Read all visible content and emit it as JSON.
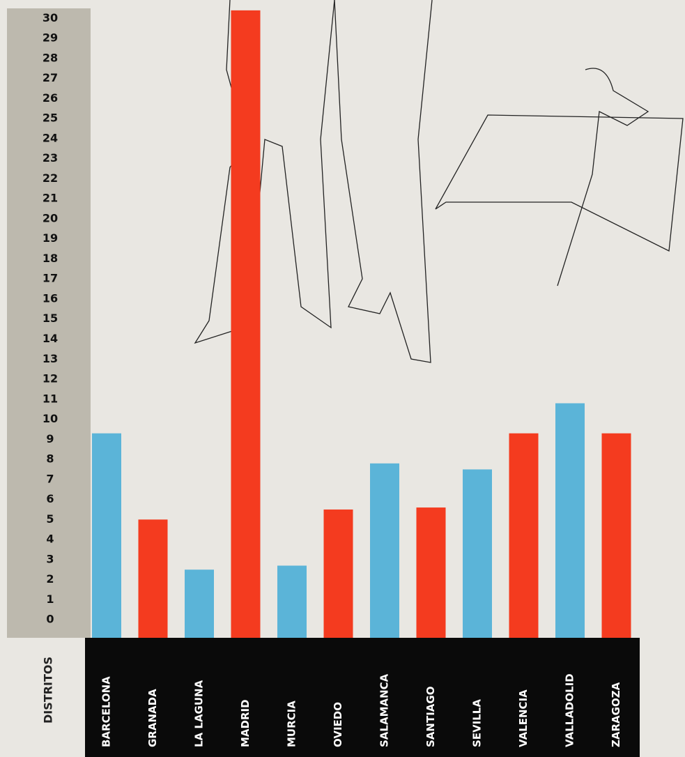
{
  "chart_data": {
    "type": "bar",
    "axis_label": "DISTRITOS",
    "categories": [
      "BARCELONA",
      "GRANADA",
      "LA LAGUNA",
      "MADRID",
      "MURCIA",
      "OVIEDO",
      "SALAMANCA",
      "SANTIAGO",
      "SEVILLA",
      "VALENCIA",
      "VALLADOLID",
      "ZARAGOZA"
    ],
    "values": [
      9.3,
      5.0,
      2.5,
      30.4,
      2.7,
      5.5,
      7.8,
      5.6,
      7.5,
      9.3,
      10.8,
      9.3
    ],
    "colors": [
      "#5bb4d8",
      "#f43b1f",
      "#5bb4d8",
      "#f43b1f",
      "#5bb4d8",
      "#f43b1f",
      "#5bb4d8",
      "#f43b1f",
      "#5bb4d8",
      "#f43b1f",
      "#5bb4d8",
      "#f43b1f"
    ],
    "ylim": [
      -0.9,
      30.5
    ],
    "yticks": [
      0,
      1,
      2,
      3,
      4,
      5,
      6,
      7,
      8,
      9,
      10,
      11,
      12,
      13,
      14,
      15,
      16,
      17,
      18,
      19,
      20,
      21,
      22,
      23,
      24,
      25,
      26,
      27,
      28,
      29,
      30
    ]
  }
}
